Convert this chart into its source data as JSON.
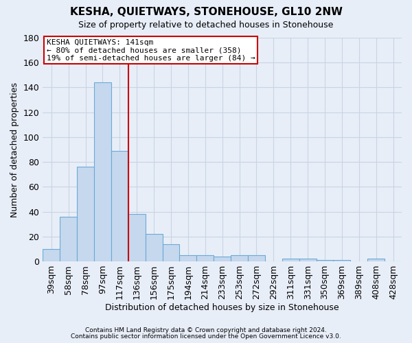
{
  "title": "KESHA, QUIETWAYS, STONEHOUSE, GL10 2NW",
  "subtitle": "Size of property relative to detached houses in Stonehouse",
  "xlabel": "Distribution of detached houses by size in Stonehouse",
  "ylabel": "Number of detached properties",
  "categories": [
    "39sqm",
    "58sqm",
    "78sqm",
    "97sqm",
    "117sqm",
    "136sqm",
    "156sqm",
    "175sqm",
    "194sqm",
    "214sqm",
    "233sqm",
    "253sqm",
    "272sqm",
    "292sqm",
    "311sqm",
    "331sqm",
    "350sqm",
    "369sqm",
    "389sqm",
    "408sqm",
    "428sqm"
  ],
  "values": [
    10,
    36,
    76,
    144,
    89,
    38,
    22,
    14,
    5,
    5,
    4,
    5,
    5,
    0,
    2,
    2,
    1,
    1,
    0,
    2,
    0
  ],
  "bar_color": "#c5d8ee",
  "bar_edge_color": "#6aaad4",
  "vline_x_index": 5,
  "annotation_title": "KESHA QUIETWAYS: 141sqm",
  "annotation_line1": "← 80% of detached houses are smaller (358)",
  "annotation_line2": "19% of semi-detached houses are larger (84) →",
  "vline_color": "#cc0000",
  "grid_color": "#c8d4e4",
  "bg_color": "#e8eef8",
  "ylim": [
    0,
    180
  ],
  "yticks": [
    0,
    20,
    40,
    60,
    80,
    100,
    120,
    140,
    160,
    180
  ],
  "footnote1": "Contains HM Land Registry data © Crown copyright and database right 2024.",
  "footnote2": "Contains public sector information licensed under the Open Government Licence v3.0."
}
